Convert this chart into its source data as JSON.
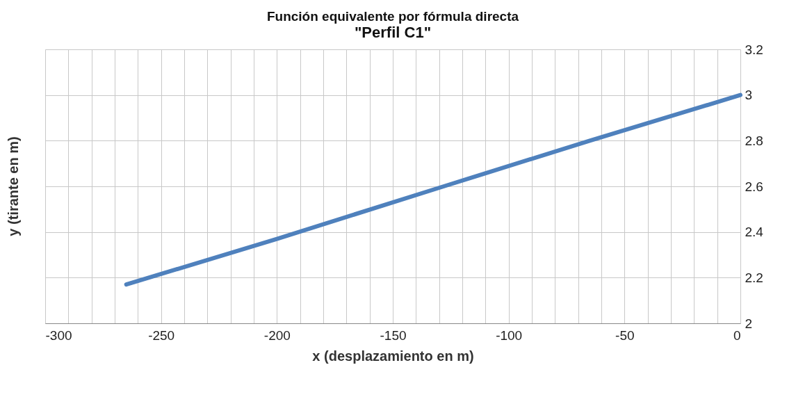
{
  "chart_data": {
    "type": "line",
    "title": "Función equivalente por fórmula directa",
    "subtitle": "\"Perfil C1\"",
    "xlabel": "x (desplazamiento en m)",
    "ylabel": "y (tirante en m)",
    "x": [
      -265,
      -200,
      -128,
      -65,
      0
    ],
    "series": [
      {
        "color": "#4f81bd",
        "values": [
          2.17,
          2.37,
          2.6,
          2.8,
          3.0
        ]
      }
    ],
    "xlim": [
      -300,
      0
    ],
    "ylim": [
      2,
      3.2
    ],
    "xticks": [
      -300,
      {
        "value": -290,
        "label": null
      },
      {
        "value": -280,
        "label": null
      },
      {
        "value": -270,
        "label": null
      },
      {
        "value": -260,
        "label": null
      },
      -250,
      {
        "value": -240,
        "label": null
      },
      {
        "value": -230,
        "label": null
      },
      {
        "value": -220,
        "label": null
      },
      {
        "value": -210,
        "label": null
      },
      -200,
      {
        "value": -190,
        "label": null
      },
      {
        "value": -180,
        "label": null
      },
      {
        "value": -170,
        "label": null
      },
      {
        "value": -160,
        "label": null
      },
      -150,
      {
        "value": -140,
        "label": null
      },
      {
        "value": -130,
        "label": null
      },
      {
        "value": -120,
        "label": null
      },
      {
        "value": -110,
        "label": null
      },
      -100,
      {
        "value": -90,
        "label": null
      },
      {
        "value": -80,
        "label": null
      },
      {
        "value": -70,
        "label": null
      },
      {
        "value": -60,
        "label": null
      },
      -50,
      {
        "value": -40,
        "label": null
      },
      {
        "value": -30,
        "label": null
      },
      {
        "value": -20,
        "label": null
      },
      {
        "value": -10,
        "label": null
      },
      0
    ],
    "yticks": [
      2,
      2.2,
      2.4,
      2.6,
      2.8,
      3,
      3.2
    ],
    "grid": true,
    "marker": "none",
    "line_style": "solid"
  }
}
